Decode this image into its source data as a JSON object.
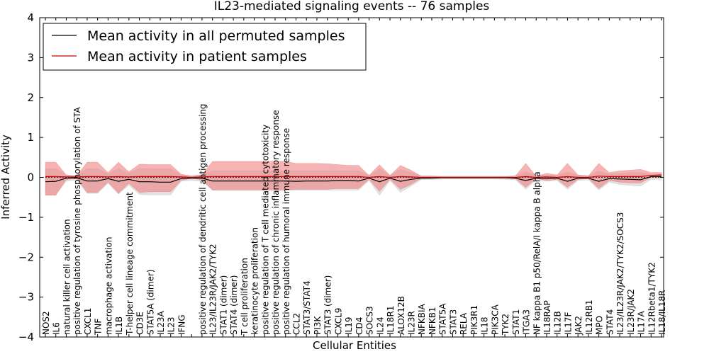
{
  "chart_data": {
    "type": "line",
    "title": "IL23-mediated signaling events -- 76 samples",
    "xlabel": "Cellular Entities",
    "ylabel": "Inferred Activity",
    "ylim": [
      -4,
      4
    ],
    "yticks": [
      -4,
      -3,
      -2,
      -1,
      0,
      1,
      2,
      3,
      4
    ],
    "ytick_labels": [
      "−4",
      "−3",
      "−2",
      "−1",
      "0",
      "1",
      "2",
      "3",
      "4"
    ],
    "legend_position": "top-left",
    "colors": {
      "permuted_line": "#000000",
      "patient_line": "#cc0000",
      "permuted_band": "#c8c8c8",
      "patient_band": "#f08080",
      "axes": "#000000"
    },
    "categories": [
      "NOS2",
      "IL6",
      "natural killer cell activation",
      "positive regulation of tyrosine phosphorylation of STAT protein",
      "CXCL1",
      "TNF",
      "macrophage activation",
      "IL1B",
      "T-helper cell lineage commitment",
      "CD3E",
      "STAT5A (dimer)",
      "IL23A",
      "IL23",
      "IFNG",
      "IL12B",
      "positive regulation of dendritic cell antigen processing and presentation",
      "IL23/IL23R/JAK2/TYK2",
      "STAT1 (dimer)",
      "STAT4 (dimer)",
      "T cell proliferation",
      "keratinocyte proliferation",
      "positive regulation of T cell mediated cytotoxicity",
      "positive regulation of chronic inflammatory response",
      "positive regulation of humoral immune response",
      "CCL2",
      "STAT3/STAT4",
      "PI3K",
      "STAT3 (dimer)",
      "CXCL9",
      "IL19",
      "CD4",
      "SOCS3",
      "IL24",
      "IL18R1",
      "ALOX12B",
      "IL23R",
      "NFKBIA",
      "NFKB1",
      "STAT5A",
      "STAT3",
      "RELA",
      "PIK3R1",
      "IL18",
      "PIK3CA",
      "TYK2",
      "STAT1",
      "ITGA3",
      "NF kappa B1 p50/RelA/I kappa B alpha",
      "IL18RAP",
      "IL12B",
      "IL17F",
      "JAK2",
      "IL12RB1",
      "MPO",
      "STAT4",
      "IL23/IL23R/JAK2/TYK2/SOCS3",
      "IL23R/JAK2",
      "IL17A",
      "IL12Rbeta1/TYK2",
      "IL18/IL18R"
    ],
    "tick_labels": [
      "NOS2",
      "IL6",
      "natural killer cell activation",
      "positive regulation of tyrosine phosphorylation of STA",
      "CXCL1",
      "TNF",
      "macrophage activation",
      "IL1B",
      "T-helper cell lineage commitment",
      "CD3E",
      "STAT5A (dimer)",
      "IL23A",
      "IL23",
      "IFNG",
      "",
      "positive regulation of dendritic cell antigen processing",
      "IL23/IL23R/JAK2/TYK2",
      "STAT1 (dimer)",
      "STAT4 (dimer)",
      "T cell proliferation",
      "keratinocyte proliferation",
      "positive regulation of T cell mediated cytotoxicity",
      "positive regulation of chronic inflammatory response",
      "positive regulation of humoral immune response",
      "CCL2",
      "STAT3/STAT4",
      "PI3K",
      "STAT3 (dimer)",
      "CXCL9",
      "IL19",
      "CD4",
      "SOCS3",
      "IL24",
      "IL18R1",
      "ALOX12B",
      "IL23R",
      "NFKBIA",
      "NFKB1",
      "STAT5A",
      "STAT3",
      "RELA",
      "PIK3R1",
      "IL18",
      "PIK3CA",
      "TYK2",
      "STAT1",
      "ITGA3",
      "NF kappa B1 p50/RelA/I kappa B alpha",
      "IL18RAP",
      "IL12B",
      "IL17F",
      "JAK2",
      "IL12RB1",
      "MPO",
      "STAT4",
      "IL23/IL23R/JAK2/TYK2/SOCS3",
      "IL23R/JAK2",
      "IL17A",
      "IL12Rbeta1/TYK2",
      "IL18/IL18R"
    ],
    "series": [
      {
        "name": "Mean activity in all permuted samples",
        "color": "#000000",
        "values": [
          -0.11,
          -0.1,
          -0.02,
          -0.01,
          -0.09,
          -0.09,
          -0.03,
          -0.1,
          -0.05,
          -0.11,
          -0.11,
          -0.12,
          -0.12,
          -0.03,
          -0.02,
          -0.02,
          -0.09,
          -0.09,
          -0.09,
          -0.09,
          -0.09,
          -0.09,
          -0.09,
          -0.09,
          -0.1,
          -0.09,
          -0.09,
          -0.09,
          -0.08,
          -0.08,
          -0.09,
          -0.02,
          -0.11,
          -0.02,
          -0.1,
          -0.05,
          -0.02,
          -0.02,
          -0.01,
          -0.01,
          -0.01,
          -0.01,
          -0.01,
          -0.01,
          -0.01,
          -0.02,
          -0.08,
          -0.02,
          -0.03,
          -0.02,
          -0.1,
          -0.02,
          -0.02,
          -0.1,
          -0.03,
          -0.04,
          -0.05,
          -0.06,
          0.02,
          0.02
        ],
        "lower": [
          -0.43,
          -0.43,
          -0.1,
          -0.06,
          -0.4,
          -0.4,
          -0.15,
          -0.42,
          -0.2,
          -0.43,
          -0.44,
          -0.44,
          -0.44,
          -0.1,
          -0.08,
          -0.1,
          -0.32,
          -0.32,
          -0.32,
          -0.32,
          -0.32,
          -0.32,
          -0.32,
          -0.32,
          -0.32,
          -0.32,
          -0.32,
          -0.32,
          -0.32,
          -0.32,
          -0.32,
          -0.08,
          -0.45,
          -0.08,
          -0.38,
          -0.22,
          -0.06,
          -0.05,
          -0.04,
          -0.04,
          -0.04,
          -0.04,
          -0.04,
          -0.04,
          -0.05,
          -0.06,
          -0.3,
          -0.07,
          -0.1,
          -0.08,
          -0.3,
          -0.08,
          -0.06,
          -0.32,
          -0.12,
          -0.18,
          -0.2,
          -0.22,
          -0.05,
          -0.05
        ],
        "upper": [
          0.22,
          0.22,
          0.06,
          0.04,
          0.22,
          0.22,
          0.08,
          0.22,
          0.1,
          0.22,
          0.22,
          0.22,
          0.22,
          0.06,
          0.04,
          0.06,
          0.16,
          0.16,
          0.16,
          0.16,
          0.16,
          0.16,
          0.16,
          0.16,
          0.16,
          0.16,
          0.16,
          0.16,
          0.16,
          0.16,
          0.16,
          0.05,
          0.22,
          0.05,
          0.2,
          0.12,
          0.04,
          0.04,
          0.03,
          0.03,
          0.03,
          0.03,
          0.03,
          0.03,
          0.03,
          0.04,
          0.14,
          0.04,
          0.06,
          0.05,
          0.14,
          0.05,
          0.04,
          0.16,
          0.08,
          0.1,
          0.12,
          0.12,
          0.08,
          0.08
        ]
      },
      {
        "name": "Mean activity in patient samples",
        "color": "#cc0000",
        "values": [
          0.02,
          0.02,
          0.01,
          0.01,
          0.02,
          0.02,
          0.01,
          0.02,
          0.01,
          0.02,
          0.02,
          0.02,
          0.02,
          0.01,
          0.0,
          0.01,
          0.02,
          0.02,
          0.02,
          0.02,
          0.02,
          0.02,
          0.02,
          0.02,
          0.02,
          0.02,
          0.02,
          0.02,
          0.02,
          0.02,
          0.02,
          0.0,
          0.02,
          0.0,
          0.02,
          0.01,
          0.0,
          0.0,
          0.0,
          0.0,
          0.0,
          0.0,
          0.0,
          0.0,
          0.0,
          0.0,
          0.02,
          0.0,
          0.01,
          0.0,
          0.02,
          0.0,
          0.0,
          0.03,
          0.02,
          0.02,
          0.02,
          0.02,
          0.05,
          0.06
        ],
        "lower": [
          -0.45,
          -0.45,
          -0.05,
          -0.03,
          -0.38,
          -0.38,
          -0.12,
          -0.4,
          -0.15,
          -0.38,
          -0.36,
          -0.36,
          -0.36,
          -0.08,
          -0.02,
          -0.06,
          -0.32,
          -0.32,
          -0.32,
          -0.32,
          -0.32,
          -0.32,
          -0.32,
          -0.32,
          -0.3,
          -0.3,
          -0.3,
          -0.3,
          -0.28,
          -0.28,
          -0.28,
          -0.05,
          -0.35,
          -0.05,
          -0.3,
          -0.18,
          -0.02,
          -0.02,
          -0.01,
          -0.01,
          -0.01,
          -0.01,
          -0.01,
          -0.01,
          -0.02,
          -0.03,
          -0.25,
          -0.03,
          -0.08,
          -0.05,
          -0.25,
          -0.05,
          -0.03,
          -0.28,
          -0.08,
          -0.12,
          -0.14,
          -0.14,
          0.0,
          0.0
        ],
        "upper": [
          0.38,
          0.38,
          0.06,
          0.04,
          0.38,
          0.38,
          0.12,
          0.38,
          0.14,
          0.33,
          0.32,
          0.32,
          0.32,
          0.08,
          0.03,
          0.07,
          0.4,
          0.4,
          0.4,
          0.4,
          0.4,
          0.4,
          0.4,
          0.4,
          0.35,
          0.35,
          0.35,
          0.34,
          0.32,
          0.3,
          0.3,
          0.05,
          0.32,
          0.05,
          0.3,
          0.18,
          0.03,
          0.03,
          0.02,
          0.02,
          0.02,
          0.02,
          0.02,
          0.02,
          0.02,
          0.03,
          0.35,
          0.03,
          0.1,
          0.06,
          0.35,
          0.06,
          0.04,
          0.35,
          0.12,
          0.16,
          0.18,
          0.2,
          0.12,
          0.12
        ]
      }
    ]
  }
}
